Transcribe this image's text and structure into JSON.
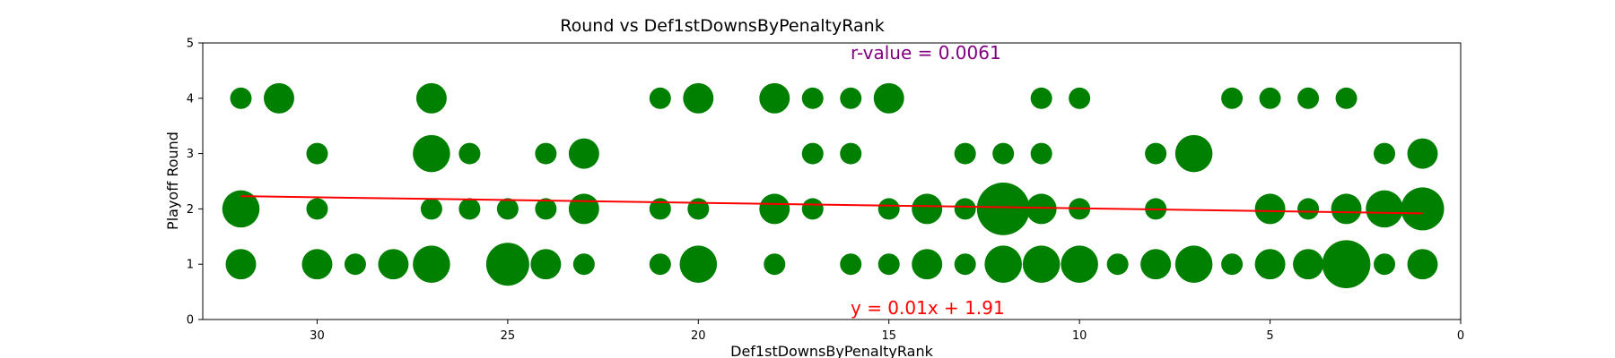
{
  "chart_data": {
    "type": "scatter",
    "title": "Round vs Def1stDownsByPenaltyRank",
    "xlabel": "Def1stDownsByPenaltyRank",
    "ylabel": "Playoff Round",
    "xlim": [
      33,
      0
    ],
    "ylim": [
      0,
      5
    ],
    "x_ticks": [
      30,
      25,
      20,
      15,
      10,
      5,
      0
    ],
    "y_ticks": [
      0,
      1,
      2,
      3,
      4,
      5
    ],
    "grid": false,
    "x_inverted": true,
    "point_color": "#008000",
    "trend_color": "#ff0000",
    "r_color": "#800080",
    "annotations": {
      "r_value": "r-value = 0.0061",
      "equation": "y = 0.01x + 1.91"
    },
    "trendline": {
      "slope": 0.01,
      "intercept": 1.91,
      "x_range": [
        32,
        1
      ]
    },
    "points": [
      {
        "x": 32,
        "y": 4,
        "count": 1
      },
      {
        "x": 31,
        "y": 4,
        "count": 2
      },
      {
        "x": 27,
        "y": 4,
        "count": 2
      },
      {
        "x": 21,
        "y": 4,
        "count": 1
      },
      {
        "x": 20,
        "y": 4,
        "count": 2
      },
      {
        "x": 18,
        "y": 4,
        "count": 2
      },
      {
        "x": 17,
        "y": 4,
        "count": 1
      },
      {
        "x": 16,
        "y": 4,
        "count": 1
      },
      {
        "x": 15,
        "y": 4,
        "count": 2
      },
      {
        "x": 11,
        "y": 4,
        "count": 1
      },
      {
        "x": 10,
        "y": 4,
        "count": 1
      },
      {
        "x": 6,
        "y": 4,
        "count": 1
      },
      {
        "x": 5,
        "y": 4,
        "count": 1
      },
      {
        "x": 4,
        "y": 4,
        "count": 1
      },
      {
        "x": 3,
        "y": 4,
        "count": 1
      },
      {
        "x": 30,
        "y": 3,
        "count": 1
      },
      {
        "x": 27,
        "y": 3,
        "count": 3
      },
      {
        "x": 26,
        "y": 3,
        "count": 1
      },
      {
        "x": 24,
        "y": 3,
        "count": 1
      },
      {
        "x": 23,
        "y": 3,
        "count": 2
      },
      {
        "x": 17,
        "y": 3,
        "count": 1
      },
      {
        "x": 16,
        "y": 3,
        "count": 1
      },
      {
        "x": 13,
        "y": 3,
        "count": 1
      },
      {
        "x": 12,
        "y": 3,
        "count": 1
      },
      {
        "x": 11,
        "y": 3,
        "count": 1
      },
      {
        "x": 8,
        "y": 3,
        "count": 1
      },
      {
        "x": 7,
        "y": 3,
        "count": 3
      },
      {
        "x": 2,
        "y": 3,
        "count": 1
      },
      {
        "x": 1,
        "y": 3,
        "count": 2
      },
      {
        "x": 32,
        "y": 2,
        "count": 3
      },
      {
        "x": 30,
        "y": 2,
        "count": 1
      },
      {
        "x": 27,
        "y": 2,
        "count": 1
      },
      {
        "x": 26,
        "y": 2,
        "count": 1
      },
      {
        "x": 25,
        "y": 2,
        "count": 1
      },
      {
        "x": 24,
        "y": 2,
        "count": 1
      },
      {
        "x": 23,
        "y": 2,
        "count": 2
      },
      {
        "x": 21,
        "y": 2,
        "count": 1
      },
      {
        "x": 20,
        "y": 2,
        "count": 1
      },
      {
        "x": 18,
        "y": 2,
        "count": 2
      },
      {
        "x": 17,
        "y": 2,
        "count": 1
      },
      {
        "x": 15,
        "y": 2,
        "count": 1
      },
      {
        "x": 14,
        "y": 2,
        "count": 2
      },
      {
        "x": 13,
        "y": 2,
        "count": 1
      },
      {
        "x": 12,
        "y": 2,
        "count": 6
      },
      {
        "x": 11,
        "y": 2,
        "count": 2
      },
      {
        "x": 10,
        "y": 2,
        "count": 1
      },
      {
        "x": 8,
        "y": 2,
        "count": 1
      },
      {
        "x": 5,
        "y": 2,
        "count": 2
      },
      {
        "x": 4,
        "y": 2,
        "count": 1
      },
      {
        "x": 3,
        "y": 2,
        "count": 2
      },
      {
        "x": 2,
        "y": 2,
        "count": 3
      },
      {
        "x": 1,
        "y": 2,
        "count": 4
      },
      {
        "x": 32,
        "y": 1,
        "count": 2
      },
      {
        "x": 30,
        "y": 1,
        "count": 2
      },
      {
        "x": 29,
        "y": 1,
        "count": 1
      },
      {
        "x": 28,
        "y": 1,
        "count": 2
      },
      {
        "x": 27,
        "y": 1,
        "count": 3
      },
      {
        "x": 25,
        "y": 1,
        "count": 4
      },
      {
        "x": 24,
        "y": 1,
        "count": 2
      },
      {
        "x": 23,
        "y": 1,
        "count": 1
      },
      {
        "x": 21,
        "y": 1,
        "count": 1
      },
      {
        "x": 20,
        "y": 1,
        "count": 3
      },
      {
        "x": 18,
        "y": 1,
        "count": 1
      },
      {
        "x": 16,
        "y": 1,
        "count": 1
      },
      {
        "x": 15,
        "y": 1,
        "count": 1
      },
      {
        "x": 14,
        "y": 1,
        "count": 2
      },
      {
        "x": 13,
        "y": 1,
        "count": 1
      },
      {
        "x": 12,
        "y": 1,
        "count": 3
      },
      {
        "x": 11,
        "y": 1,
        "count": 3
      },
      {
        "x": 10,
        "y": 1,
        "count": 3
      },
      {
        "x": 9,
        "y": 1,
        "count": 1
      },
      {
        "x": 8,
        "y": 1,
        "count": 2
      },
      {
        "x": 7,
        "y": 1,
        "count": 3
      },
      {
        "x": 6,
        "y": 1,
        "count": 1
      },
      {
        "x": 5,
        "y": 1,
        "count": 2
      },
      {
        "x": 4,
        "y": 1,
        "count": 2
      },
      {
        "x": 3,
        "y": 1,
        "count": 5
      },
      {
        "x": 2,
        "y": 1,
        "count": 1
      },
      {
        "x": 1,
        "y": 1,
        "count": 2
      }
    ]
  }
}
